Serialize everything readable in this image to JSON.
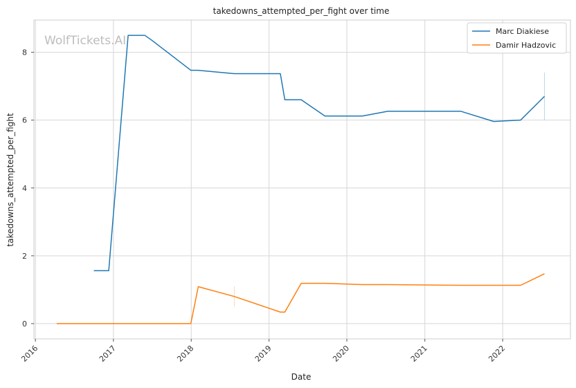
{
  "chart_data": {
    "type": "line",
    "title": "takedowns_attempted_per_fight over time",
    "xlabel": "Date",
    "ylabel": "takedowns_attempted_per_fight",
    "watermark": "WolfTickets.AI",
    "x_ticks": [
      "2016",
      "2017",
      "2018",
      "2019",
      "2020",
      "2021",
      "2022"
    ],
    "y_ticks": [
      "0",
      "2",
      "4",
      "6",
      "8"
    ],
    "xlim": [
      "2015-12-25",
      "2022-11-15"
    ],
    "ylim": [
      -0.45,
      8.95
    ],
    "grid": true,
    "legend_position": "top-right",
    "colors": {
      "series_1": "#1f77b4",
      "series_2": "#ff7f0e",
      "grid": "#d6d6d6",
      "axes": "#cccccc"
    },
    "series": [
      {
        "name": "Marc Diakiese",
        "color": "#1f77b4",
        "points": [
          [
            "2016-10-01",
            1.56
          ],
          [
            "2016-12-10",
            1.56
          ],
          [
            "2017-03-11",
            8.5
          ],
          [
            "2017-05-28",
            8.5
          ],
          [
            "2017-07-01",
            8.35
          ],
          [
            "2017-12-30",
            7.47
          ],
          [
            "2018-02-01",
            7.47
          ],
          [
            "2018-07-22",
            7.37
          ],
          [
            "2019-02-23",
            7.37
          ],
          [
            "2019-03-16",
            6.6
          ],
          [
            "2019-06-01",
            6.6
          ],
          [
            "2019-09-20",
            6.12
          ],
          [
            "2020-03-14",
            6.12
          ],
          [
            "2020-07-11",
            6.26
          ],
          [
            "2021-06-19",
            6.26
          ],
          [
            "2021-11-20",
            5.96
          ],
          [
            "2022-03-26",
            6.0
          ],
          [
            "2022-07-16",
            6.7
          ]
        ],
        "error_bars": [
          {
            "x": "2022-07-16",
            "low": 6.0,
            "high": 7.4
          }
        ]
      },
      {
        "name": "Damir Hadzovic",
        "color": "#ff7f0e",
        "points": [
          [
            "2016-04-10",
            0.0
          ],
          [
            "2017-12-30",
            0.0
          ],
          [
            "2018-02-03",
            1.09
          ],
          [
            "2018-07-22",
            0.8
          ],
          [
            "2019-02-23",
            0.34
          ],
          [
            "2019-03-16",
            0.34
          ],
          [
            "2019-06-01",
            1.19
          ],
          [
            "2019-09-21",
            1.19
          ],
          [
            "2020-03-14",
            1.15
          ],
          [
            "2020-07-11",
            1.15
          ],
          [
            "2021-06-19",
            1.13
          ],
          [
            "2022-03-26",
            1.13
          ],
          [
            "2022-07-16",
            1.47
          ]
        ],
        "error_bars": [
          {
            "x": "2018-07-22",
            "low": 0.5,
            "high": 1.1
          }
        ]
      }
    ]
  }
}
